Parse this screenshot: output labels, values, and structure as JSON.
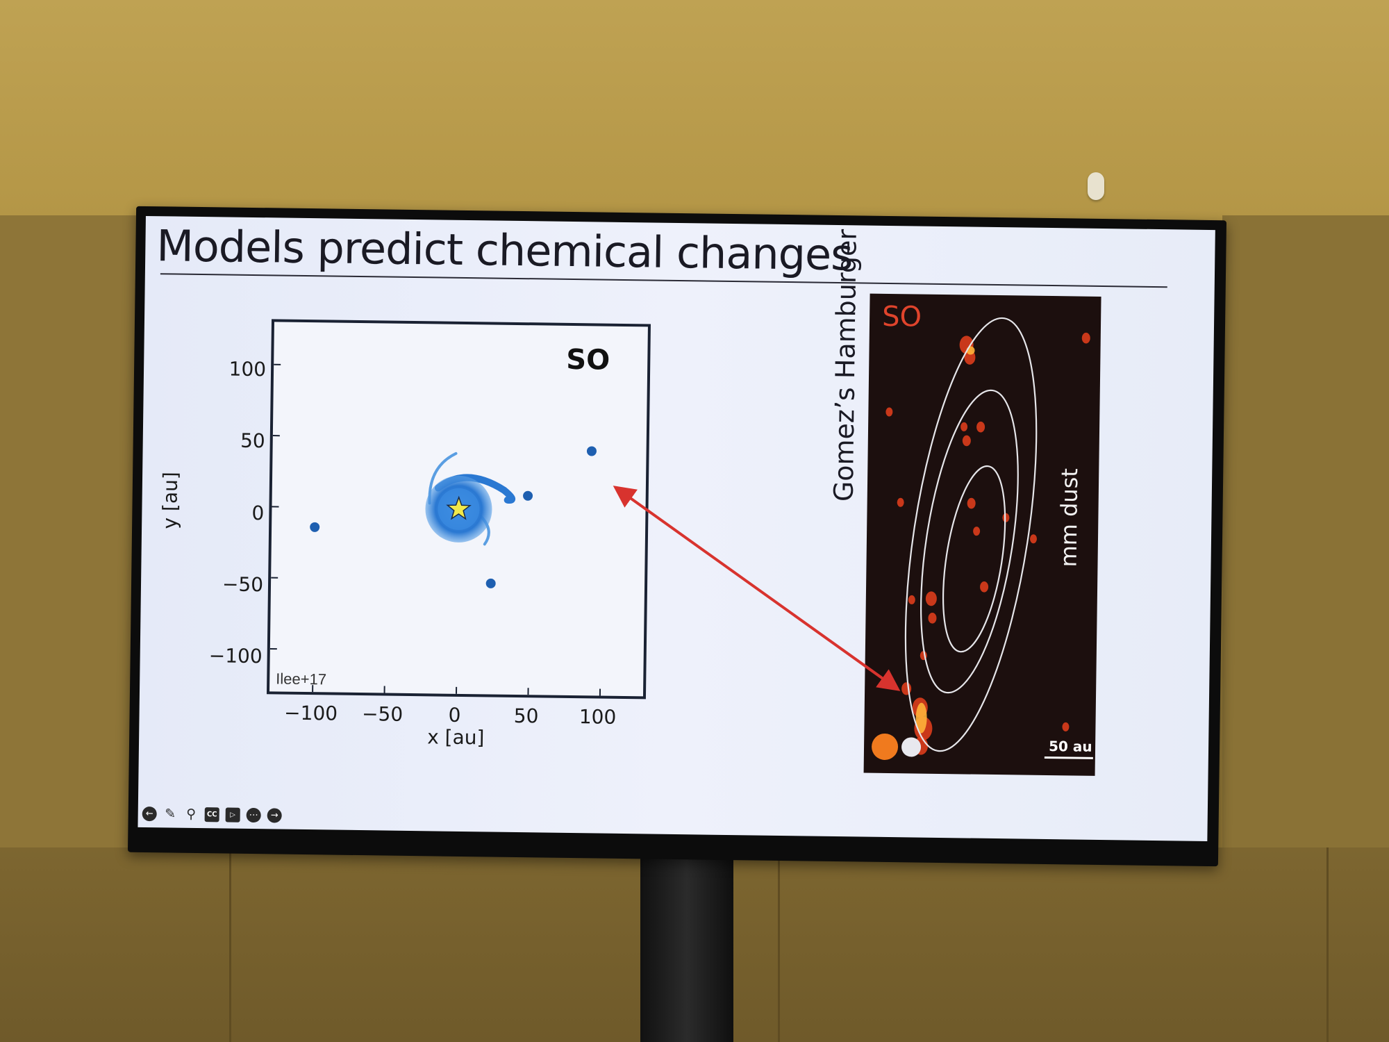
{
  "slide": {
    "title": "Models predict chemical changes"
  },
  "model_plot": {
    "molecule_label": "SO",
    "credit": "Ilee+17",
    "x_axis_label": "x [au]",
    "y_axis_label": "y [au]",
    "x_ticks": [
      "−100",
      "−50",
      "0",
      "50",
      "100"
    ],
    "y_ticks": [
      "100",
      "50",
      "0",
      "−50",
      "−100"
    ],
    "x_range": [
      -130,
      130
    ],
    "y_range": [
      -130,
      130
    ],
    "map_color": "#2a78d2",
    "central_marker": "star-icon",
    "clumps": [
      {
        "x": 92,
        "y": 42
      },
      {
        "x": -100,
        "y": -14
      },
      {
        "x": 23,
        "y": -52
      },
      {
        "x": 48,
        "y": 10
      }
    ]
  },
  "observation": {
    "target": "Gomez’s Hamburger",
    "molecule_label": "SO",
    "contour_label": "mm dust",
    "scale_label": "50 au",
    "beam_colors": [
      "#f07a1e",
      "#e8e8ee"
    ],
    "emission_color": "#e8401c"
  },
  "annotation_arrow": {
    "color": "#d8332e"
  },
  "toolbar": {
    "icons": [
      "back-icon",
      "pen-icon",
      "search-icon",
      "captions-icon",
      "video-off-icon",
      "more-icon",
      "forward-icon"
    ],
    "cc_label": "CC"
  }
}
